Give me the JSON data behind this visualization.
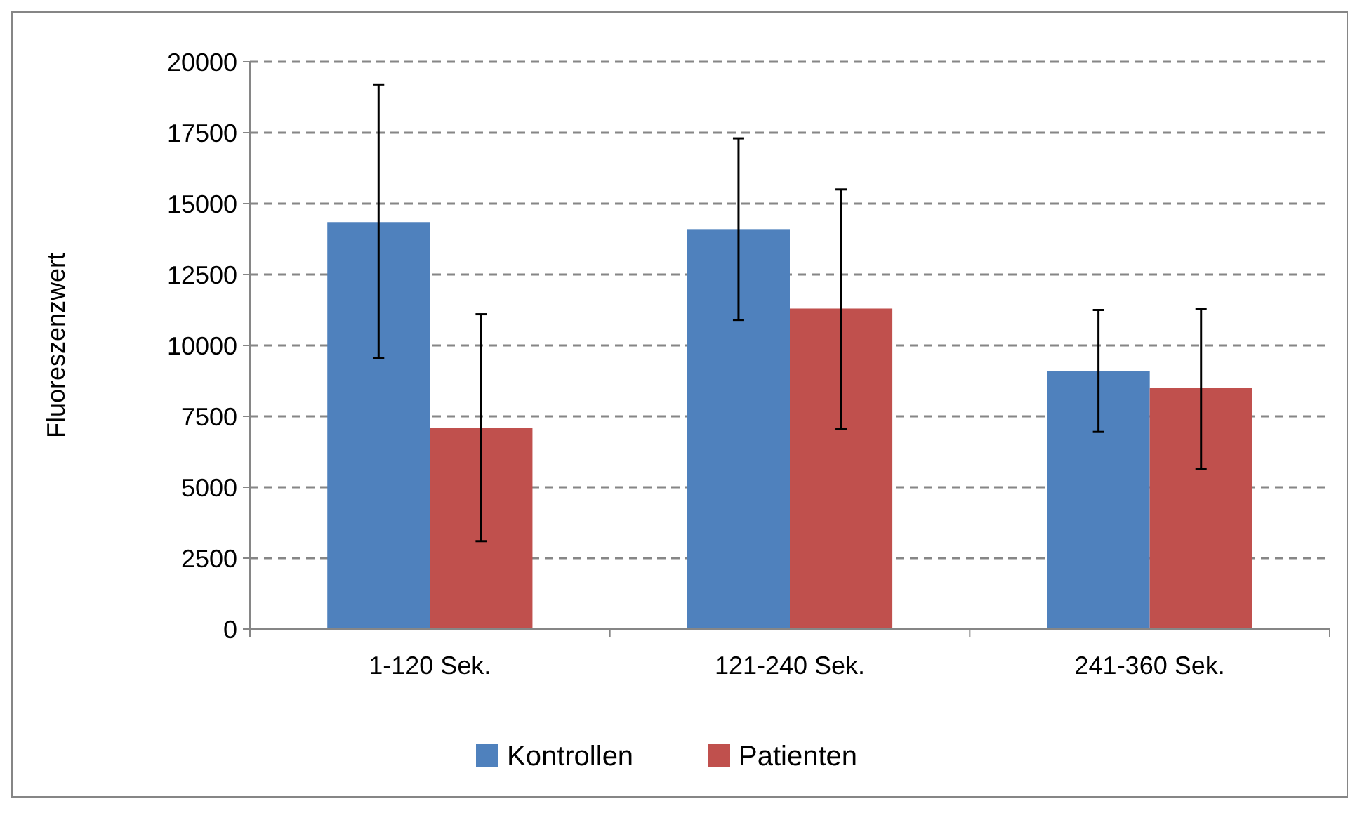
{
  "chart_data": {
    "type": "bar",
    "ylabel": "Fluoreszenzwert",
    "categories": [
      "1-120 Sek.",
      "121-240 Sek.",
      "241-360 Sek."
    ],
    "series": [
      {
        "name": "Kontrollen",
        "color": "#4f81bd",
        "values": [
          14350,
          14100,
          9100
        ],
        "errors": [
          [
            9550,
            19200
          ],
          [
            10900,
            17300
          ],
          [
            6950,
            11250
          ]
        ]
      },
      {
        "name": "Patienten",
        "color": "#c0504d",
        "values": [
          7100,
          11300,
          8500
        ],
        "errors": [
          [
            3100,
            11100
          ],
          [
            7050,
            15500
          ],
          [
            5650,
            11300
          ]
        ]
      }
    ],
    "ylim": [
      0,
      20000
    ],
    "yticks": [
      0,
      2500,
      5000,
      7500,
      10000,
      12500,
      15000,
      17500,
      20000
    ],
    "grid": "y",
    "legend": "bottom"
  }
}
